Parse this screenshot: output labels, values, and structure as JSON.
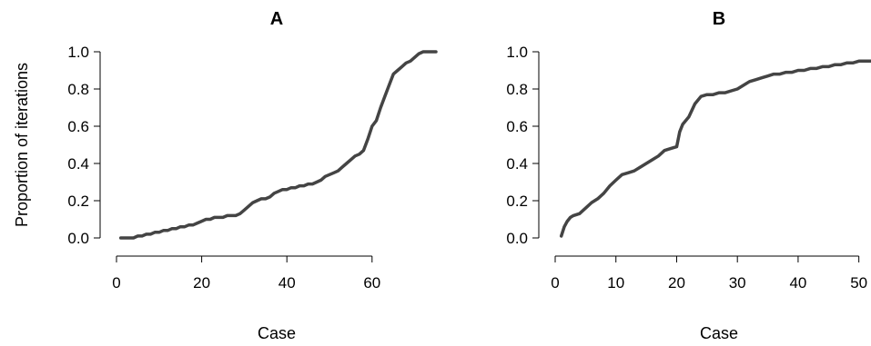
{
  "chart_data": [
    {
      "type": "line",
      "title": "A",
      "xlabel": "Case",
      "ylabel": "Proportion of iterations",
      "xlim": [
        0,
        75
      ],
      "ylim": [
        0,
        1
      ],
      "xticks": [
        "0",
        "20",
        "40",
        "60"
      ],
      "yticks": [
        "0.0",
        "0.2",
        "0.4",
        "0.6",
        "0.8",
        "1.0"
      ],
      "color": "#444444",
      "series": [
        {
          "x": [
            1,
            4,
            5,
            6,
            7,
            8,
            9,
            10,
            11,
            12,
            13,
            14,
            15,
            16,
            17,
            18,
            19,
            20,
            21,
            22,
            23,
            24,
            25,
            26,
            27,
            28,
            29,
            30,
            31,
            32,
            33,
            34,
            35,
            36,
            37,
            38,
            39,
            40,
            41,
            42,
            43,
            44,
            45,
            46,
            47,
            48,
            49,
            50,
            51,
            52,
            53,
            54,
            55,
            56,
            57,
            58,
            59,
            60,
            61,
            62,
            63,
            64,
            65,
            66,
            67,
            68,
            69,
            70,
            71,
            72,
            73,
            74,
            75
          ],
          "y": [
            0.0,
            0.0,
            0.01,
            0.01,
            0.02,
            0.02,
            0.03,
            0.03,
            0.04,
            0.04,
            0.05,
            0.05,
            0.06,
            0.06,
            0.07,
            0.07,
            0.08,
            0.09,
            0.1,
            0.1,
            0.11,
            0.11,
            0.11,
            0.12,
            0.12,
            0.12,
            0.13,
            0.15,
            0.17,
            0.19,
            0.2,
            0.21,
            0.21,
            0.22,
            0.24,
            0.25,
            0.26,
            0.26,
            0.27,
            0.27,
            0.28,
            0.28,
            0.29,
            0.29,
            0.3,
            0.31,
            0.33,
            0.34,
            0.35,
            0.36,
            0.38,
            0.4,
            0.42,
            0.44,
            0.45,
            0.47,
            0.53,
            0.6,
            0.63,
            0.7,
            0.76,
            0.82,
            0.88,
            0.9,
            0.92,
            0.94,
            0.95,
            0.97,
            0.99,
            1.0,
            1.0,
            1.0,
            1.0
          ]
        }
      ]
    },
    {
      "type": "line",
      "title": "B",
      "xlabel": "Case",
      "ylabel": "",
      "xlim": [
        0,
        52
      ],
      "ylim": [
        0,
        1
      ],
      "xticks": [
        "0",
        "10",
        "20",
        "30",
        "40",
        "50"
      ],
      "yticks": [
        "0.0",
        "0.2",
        "0.4",
        "0.6",
        "0.8",
        "1.0"
      ],
      "color": "#444444",
      "series": [
        {
          "x": [
            1,
            1.5,
            2,
            2.5,
            3,
            4,
            5,
            6,
            7,
            8,
            9,
            10,
            11,
            12,
            13,
            14,
            15,
            16,
            17,
            18,
            19,
            20,
            20.5,
            21,
            22,
            23,
            24,
            25,
            26,
            27,
            28,
            29,
            30,
            31,
            32,
            33,
            34,
            35,
            36,
            37,
            38,
            39,
            40,
            41,
            42,
            43,
            44,
            45,
            46,
            47,
            48,
            49,
            50,
            51,
            52
          ],
          "y": [
            0.01,
            0.06,
            0.09,
            0.11,
            0.12,
            0.13,
            0.16,
            0.19,
            0.21,
            0.24,
            0.28,
            0.31,
            0.34,
            0.35,
            0.36,
            0.38,
            0.4,
            0.42,
            0.44,
            0.47,
            0.48,
            0.49,
            0.57,
            0.61,
            0.65,
            0.72,
            0.76,
            0.77,
            0.77,
            0.78,
            0.78,
            0.79,
            0.8,
            0.82,
            0.84,
            0.85,
            0.86,
            0.87,
            0.88,
            0.88,
            0.89,
            0.89,
            0.9,
            0.9,
            0.91,
            0.91,
            0.92,
            0.92,
            0.93,
            0.93,
            0.94,
            0.94,
            0.95,
            0.95,
            0.95
          ]
        }
      ]
    }
  ]
}
